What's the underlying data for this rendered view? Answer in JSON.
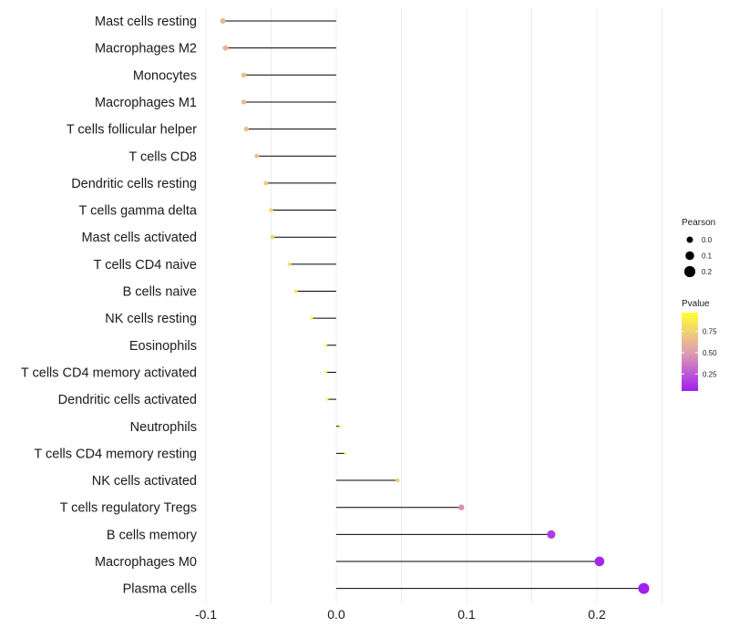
{
  "chart_data": {
    "type": "lollipop",
    "title": "",
    "xlabel": "",
    "ylabel": "",
    "xlim": [
      -0.1,
      0.25
    ],
    "x_ticks": [
      -0.1,
      0.0,
      0.1,
      0.2
    ],
    "x_tick_labels": [
      "-0.1",
      "0.0",
      "0.1",
      "0.2"
    ],
    "grid": "vertical",
    "categories": [
      "Mast cells resting",
      "Macrophages M2",
      "Monocytes",
      "Macrophages M1",
      "T cells follicular helper",
      "T cells CD8",
      "Dendritic cells resting",
      "T cells gamma delta",
      "Mast cells activated",
      "T cells CD4 naive",
      "B cells naive",
      "NK cells resting",
      "Eosinophils",
      "T cells CD4 memory activated",
      "Dendritic cells activated",
      "Neutrophils",
      "T cells CD4 memory resting",
      "NK cells activated",
      "T cells regulatory  Tregs ",
      "B cells memory",
      "Macrophages M0",
      "Plasma cells"
    ],
    "values": [
      -0.087,
      -0.085,
      -0.071,
      -0.071,
      -0.069,
      -0.061,
      -0.054,
      -0.05,
      -0.049,
      -0.036,
      -0.031,
      -0.019,
      -0.008,
      -0.008,
      -0.007,
      0.003,
      0.007,
      0.047,
      0.096,
      0.165,
      0.202,
      0.236
    ],
    "pvalues": [
      0.62,
      0.6,
      0.66,
      0.64,
      0.66,
      0.68,
      0.72,
      0.76,
      0.76,
      0.82,
      0.86,
      0.93,
      0.97,
      0.97,
      0.97,
      0.98,
      0.96,
      0.72,
      0.45,
      0.15,
      0.08,
      0.05
    ],
    "legend": {
      "size_title": "Pearson",
      "size_items": [
        {
          "label": "0.0",
          "value": 0.0
        },
        {
          "label": "0.1",
          "value": 0.1
        },
        {
          "label": "0.2",
          "value": 0.2
        }
      ],
      "color_title": "Pvalue",
      "color_ticks": [
        "0.75",
        "0.50",
        "0.25"
      ],
      "color_tick_values": [
        0.75,
        0.5,
        0.25
      ],
      "color_range": [
        0.05,
        0.97
      ],
      "colors": {
        "low": "#a020f0",
        "mid": "#e0a0b0",
        "high": "#ffff33"
      },
      "placement": "right"
    }
  }
}
